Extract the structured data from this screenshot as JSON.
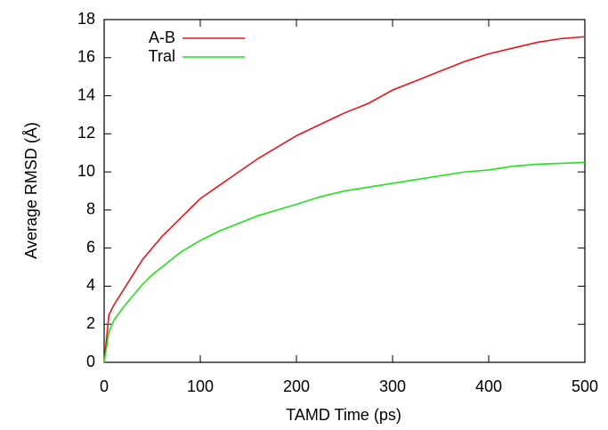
{
  "chart_data": {
    "type": "line",
    "xlabel": "TAMD Time (ps)",
    "ylabel": "Average RMSD (Å)",
    "x": [
      0,
      5,
      10,
      20,
      30,
      40,
      50,
      60,
      70,
      80,
      90,
      100,
      120,
      140,
      160,
      180,
      200,
      225,
      250,
      275,
      300,
      325,
      350,
      375,
      400,
      425,
      450,
      475,
      500
    ],
    "series": [
      {
        "name": "A-B",
        "color": "#e8141c",
        "values": [
          0,
          2.5,
          3.0,
          3.8,
          4.6,
          5.4,
          6.0,
          6.6,
          7.1,
          7.6,
          8.1,
          8.6,
          9.3,
          10.0,
          10.7,
          11.3,
          11.9,
          12.5,
          13.1,
          13.6,
          14.3,
          14.8,
          15.3,
          15.8,
          16.2,
          16.5,
          16.8,
          17.0,
          17.1
        ]
      },
      {
        "name": "Tral",
        "color": "#22e01c",
        "values": [
          0,
          1.6,
          2.2,
          2.9,
          3.5,
          4.1,
          4.6,
          5.0,
          5.4,
          5.8,
          6.1,
          6.4,
          6.9,
          7.3,
          7.7,
          8.0,
          8.3,
          8.7,
          9.0,
          9.2,
          9.4,
          9.6,
          9.8,
          10.0,
          10.1,
          10.3,
          10.4,
          10.45,
          10.5
        ]
      }
    ],
    "xlim": [
      0,
      500
    ],
    "xticks": [
      0,
      100,
      200,
      300,
      400,
      500
    ],
    "ylim": [
      0,
      18
    ],
    "yticks": [
      0,
      2,
      4,
      6,
      8,
      10,
      12,
      14,
      16,
      18
    ],
    "legend": "top-left",
    "grid": false
  }
}
